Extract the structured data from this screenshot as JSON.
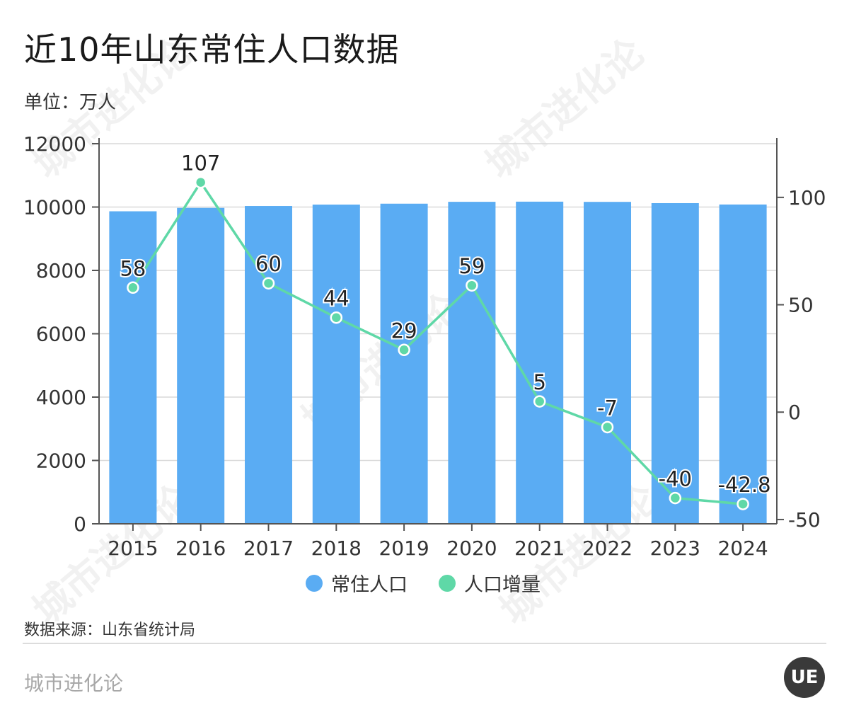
{
  "title": "近10年山东常住人口数据",
  "unit": "单位：万人",
  "source": "数据来源：山东省统计局",
  "brand": "城市进化论",
  "logo_text": "UE",
  "watermark_text": "城市进化论",
  "colors": {
    "bar": "#5aacf3",
    "line": "#5fd8a7",
    "grid": "#d9d9d9",
    "axis": "#555555"
  },
  "chart_data": {
    "type": "bar",
    "title": "近10年山东常住人口数据",
    "categories": [
      "2015",
      "2016",
      "2017",
      "2018",
      "2019",
      "2020",
      "2021",
      "2022",
      "2023",
      "2024"
    ],
    "series": [
      {
        "name": "常住人口",
        "type": "bar",
        "axis": "left",
        "color": "#5aacf3",
        "values": [
          9866,
          9973,
          10033,
          10077,
          10106,
          10165,
          10170,
          10163,
          10123,
          10080
        ]
      },
      {
        "name": "人口增量",
        "type": "line",
        "axis": "right",
        "color": "#5fd8a7",
        "values": [
          58,
          107,
          60,
          44,
          29,
          59,
          5,
          -7,
          -40,
          -42.8
        ],
        "labels": [
          "58",
          "107",
          "60",
          "44",
          "29",
          "59",
          "5",
          "-7",
          "-40",
          "-42.8"
        ]
      }
    ],
    "y_left": {
      "min": 0,
      "max": 12000,
      "ticks": [
        0,
        2000,
        4000,
        6000,
        8000,
        10000,
        12000
      ]
    },
    "y_right": {
      "min": -52,
      "max": 125,
      "ticks": [
        -50,
        0,
        50,
        100
      ]
    },
    "grid": true,
    "legend_position": "bottom"
  }
}
